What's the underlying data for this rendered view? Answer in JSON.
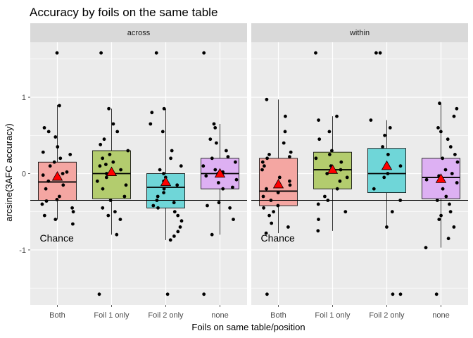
{
  "chart_data": {
    "type": "box",
    "title": "Accuracy by foils on the same table",
    "xlabel": "Foils on same table/position",
    "ylabel": "arcsine(3AFC accuracy)",
    "ylim": [
      -1.72,
      1.72
    ],
    "yticks": [
      -1,
      0,
      1
    ],
    "categories": [
      "Both",
      "Foil 1 only",
      "Foil 2 only",
      "none"
    ],
    "fills": [
      "#F4A6A2",
      "#B3CC6E",
      "#6FD6D8",
      "#DDB0F3"
    ],
    "mean_marker_color": "#FF0000",
    "grid": true,
    "chance_level": -0.35,
    "chance_label": "Chance",
    "panels": [
      {
        "strip": "across",
        "boxes": [
          {
            "category": "Both",
            "q1": -0.35,
            "median": -0.11,
            "q3": 0.15,
            "whisker_low": -0.6,
            "whisker_high": 0.9,
            "mean": -0.04,
            "points": [
              1.58,
              0.89,
              0.6,
              0.55,
              0.48,
              0.35,
              0.28,
              0.25,
              0.2,
              0.15,
              0.1,
              0.02,
              0.0,
              -0.02,
              -0.06,
              -0.1,
              -0.15,
              -0.2,
              -0.3,
              -0.34,
              -0.36,
              -0.4,
              -0.45,
              -0.5,
              -0.55,
              -0.6,
              -0.66
            ]
          },
          {
            "category": "Foil 1 only",
            "q1": -0.33,
            "median": 0.0,
            "q3": 0.3,
            "whisker_low": -0.8,
            "whisker_high": 0.85,
            "mean": 0.02,
            "points": [
              1.58,
              0.85,
              0.65,
              0.55,
              0.45,
              0.38,
              0.3,
              0.25,
              0.2,
              0.15,
              0.12,
              0.1,
              0.05,
              0.0,
              -0.05,
              -0.1,
              -0.15,
              -0.2,
              -0.3,
              -0.35,
              -0.45,
              -0.5,
              -0.55,
              -0.6,
              -0.8,
              -1.58
            ]
          },
          {
            "category": "Foil 2 only",
            "q1": -0.45,
            "median": -0.18,
            "q3": 0.0,
            "whisker_low": -0.87,
            "whisker_high": 0.85,
            "mean": -0.11,
            "points": [
              1.58,
              0.85,
              0.8,
              0.65,
              0.55,
              0.3,
              0.2,
              0.1,
              0.05,
              0.0,
              -0.05,
              -0.1,
              -0.15,
              -0.2,
              -0.25,
              -0.3,
              -0.35,
              -0.38,
              -0.42,
              -0.45,
              -0.5,
              -0.55,
              -0.62,
              -0.7,
              -0.76,
              -0.82,
              -0.87,
              -1.58
            ]
          },
          {
            "category": "none",
            "q1": -0.2,
            "median": 0.0,
            "q3": 0.2,
            "whisker_low": -0.8,
            "whisker_high": 0.65,
            "mean": 0.0,
            "points": [
              1.58,
              0.65,
              0.6,
              0.45,
              0.4,
              0.3,
              0.22,
              0.2,
              0.15,
              0.1,
              0.05,
              0.02,
              0.0,
              -0.03,
              -0.08,
              -0.12,
              -0.18,
              -0.2,
              -0.38,
              -0.42,
              -0.45,
              -0.6,
              -0.8,
              -1.58
            ]
          }
        ]
      },
      {
        "strip": "within",
        "boxes": [
          {
            "category": "Both",
            "q1": -0.42,
            "median": -0.23,
            "q3": 0.2,
            "whisker_low": -0.78,
            "whisker_high": 0.97,
            "mean": -0.14,
            "points": [
              0.97,
              0.75,
              0.55,
              0.4,
              0.28,
              0.25,
              0.22,
              0.2,
              0.15,
              0.1,
              0.05,
              -0.05,
              -0.1,
              -0.15,
              -0.2,
              -0.25,
              -0.3,
              -0.35,
              -0.42,
              -0.45,
              -0.5,
              -0.55,
              -0.65,
              -0.7,
              -0.78,
              -1.58
            ]
          },
          {
            "category": "Foil 1 only",
            "q1": -0.2,
            "median": 0.05,
            "q3": 0.28,
            "whisker_low": -0.75,
            "whisker_high": 0.75,
            "mean": 0.05,
            "points": [
              1.58,
              0.75,
              0.7,
              0.55,
              0.45,
              0.3,
              0.25,
              0.2,
              0.15,
              0.1,
              0.05,
              0.0,
              -0.05,
              -0.1,
              -0.2,
              -0.3,
              -0.35,
              -0.4,
              -0.5,
              -0.6,
              -0.75
            ]
          },
          {
            "category": "Foil 2 only",
            "q1": -0.25,
            "median": 0.0,
            "q3": 0.33,
            "whisker_low": -0.72,
            "whisker_high": 0.7,
            "mean": 0.1,
            "points": [
              1.58,
              1.58,
              0.7,
              0.6,
              0.5,
              0.35,
              0.25,
              0.1,
              0.0,
              -0.05,
              -0.2,
              -0.35,
              -0.5,
              -0.7,
              -1.58,
              -1.58
            ]
          },
          {
            "category": "none",
            "q1": -0.33,
            "median": -0.05,
            "q3": 0.2,
            "whisker_low": -0.97,
            "whisker_high": 0.92,
            "mean": -0.07,
            "points": [
              0.92,
              0.85,
              0.75,
              0.6,
              0.55,
              0.45,
              0.35,
              0.25,
              0.2,
              0.15,
              0.05,
              0.0,
              -0.03,
              -0.08,
              -0.12,
              -0.2,
              -0.3,
              -0.35,
              -0.4,
              -0.5,
              -0.55,
              -0.6,
              -0.7,
              -0.85,
              -0.97,
              -1.58
            ]
          }
        ]
      }
    ]
  }
}
